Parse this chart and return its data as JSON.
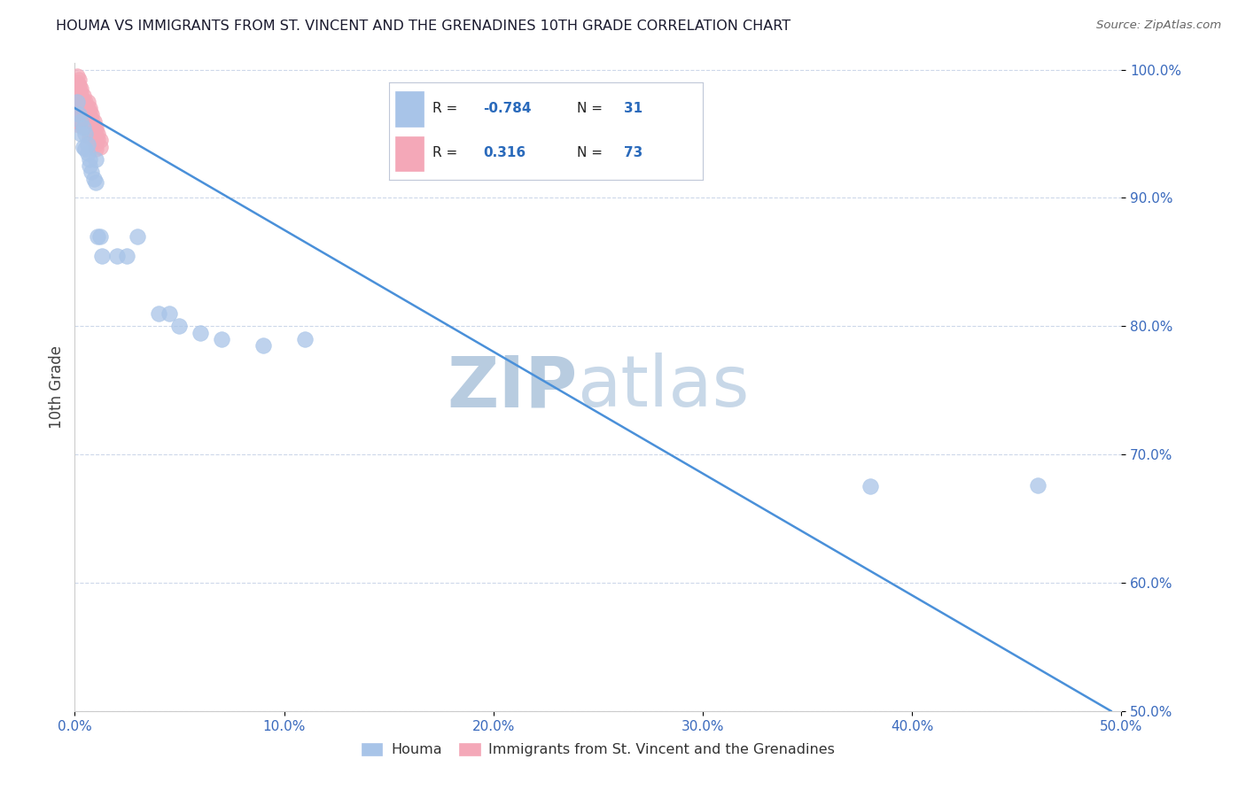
{
  "title": "HOUMA VS IMMIGRANTS FROM ST. VINCENT AND THE GRENADINES 10TH GRADE CORRELATION CHART",
  "source_text": "Source: ZipAtlas.com",
  "ylabel": "10th Grade",
  "xlim": [
    0.0,
    0.5
  ],
  "ylim": [
    0.5,
    1.005
  ],
  "xticks": [
    0.0,
    0.1,
    0.2,
    0.3,
    0.4,
    0.5
  ],
  "xtick_labels": [
    "0.0%",
    "10.0%",
    "20.0%",
    "30.0%",
    "40.0%",
    "50.0%"
  ],
  "yticks": [
    0.5,
    0.6,
    0.7,
    0.8,
    0.9,
    1.0
  ],
  "ytick_labels": [
    "50.0%",
    "60.0%",
    "70.0%",
    "80.0%",
    "90.0%",
    "100.0%"
  ],
  "blue_color": "#a8c4e8",
  "pink_color": "#f4a8b8",
  "blue_edge": "#a8c4e8",
  "pink_edge": "#f4a8b8",
  "line_color": "#4a90d9",
  "legend_blue_R": "-0.784",
  "legend_blue_N": "31",
  "legend_pink_R": "0.316",
  "legend_pink_N": "73",
  "houma_label": "Houma",
  "immigrants_label": "Immigrants from St. Vincent and the Grenadines",
  "watermark_zip": "ZIP",
  "watermark_atlas": "atlas",
  "blue_x": [
    0.001,
    0.002,
    0.003,
    0.003,
    0.004,
    0.004,
    0.005,
    0.005,
    0.006,
    0.006,
    0.007,
    0.007,
    0.008,
    0.009,
    0.01,
    0.01,
    0.011,
    0.012,
    0.013,
    0.02,
    0.025,
    0.03,
    0.04,
    0.045,
    0.05,
    0.06,
    0.07,
    0.09,
    0.11,
    0.38,
    0.46
  ],
  "blue_y": [
    0.975,
    0.965,
    0.96,
    0.95,
    0.955,
    0.94,
    0.95,
    0.938,
    0.935,
    0.942,
    0.93,
    0.925,
    0.92,
    0.915,
    0.912,
    0.93,
    0.87,
    0.87,
    0.855,
    0.855,
    0.855,
    0.87,
    0.81,
    0.81,
    0.8,
    0.795,
    0.79,
    0.785,
    0.79,
    0.675,
    0.676
  ],
  "pink_x": [
    0.001,
    0.001,
    0.001,
    0.001,
    0.001,
    0.001,
    0.001,
    0.001,
    0.001,
    0.001,
    0.002,
    0.002,
    0.002,
    0.002,
    0.002,
    0.002,
    0.002,
    0.002,
    0.002,
    0.002,
    0.002,
    0.002,
    0.003,
    0.003,
    0.003,
    0.003,
    0.003,
    0.003,
    0.003,
    0.003,
    0.003,
    0.004,
    0.004,
    0.004,
    0.004,
    0.004,
    0.004,
    0.004,
    0.005,
    0.005,
    0.005,
    0.005,
    0.006,
    0.006,
    0.006,
    0.006,
    0.006,
    0.006,
    0.007,
    0.007,
    0.007,
    0.007,
    0.007,
    0.007,
    0.007,
    0.007,
    0.008,
    0.008,
    0.008,
    0.008,
    0.009,
    0.009,
    0.009,
    0.01,
    0.01,
    0.01,
    0.01,
    0.01,
    0.01,
    0.011,
    0.011,
    0.012,
    0.012
  ],
  "pink_y": [
    0.995,
    0.99,
    0.985,
    0.98,
    0.975,
    0.975,
    0.972,
    0.97,
    0.968,
    0.965,
    0.992,
    0.988,
    0.985,
    0.982,
    0.978,
    0.975,
    0.972,
    0.97,
    0.967,
    0.962,
    0.96,
    0.957,
    0.985,
    0.982,
    0.978,
    0.974,
    0.97,
    0.968,
    0.965,
    0.962,
    0.958,
    0.98,
    0.975,
    0.97,
    0.968,
    0.965,
    0.96,
    0.956,
    0.975,
    0.97,
    0.965,
    0.96,
    0.975,
    0.97,
    0.968,
    0.964,
    0.96,
    0.956,
    0.97,
    0.967,
    0.963,
    0.96,
    0.957,
    0.954,
    0.95,
    0.947,
    0.965,
    0.962,
    0.958,
    0.954,
    0.96,
    0.956,
    0.952,
    0.955,
    0.952,
    0.948,
    0.945,
    0.942,
    0.938,
    0.95,
    0.946,
    0.945,
    0.94
  ],
  "blue_line_x0": 0.0,
  "blue_line_x1": 0.495,
  "blue_line_y0": 0.97,
  "blue_line_y1": 0.5,
  "background_color": "#ffffff",
  "grid_color": "#c8d4e8",
  "title_color": "#1a1a2e",
  "axis_label_color": "#404040",
  "tick_color": "#3a6abd",
  "legend_text_color": "#1a1a1a",
  "watermark_color_zip": "#b8cce0",
  "watermark_color_atlas": "#c8d8e8",
  "source_color": "#666666"
}
